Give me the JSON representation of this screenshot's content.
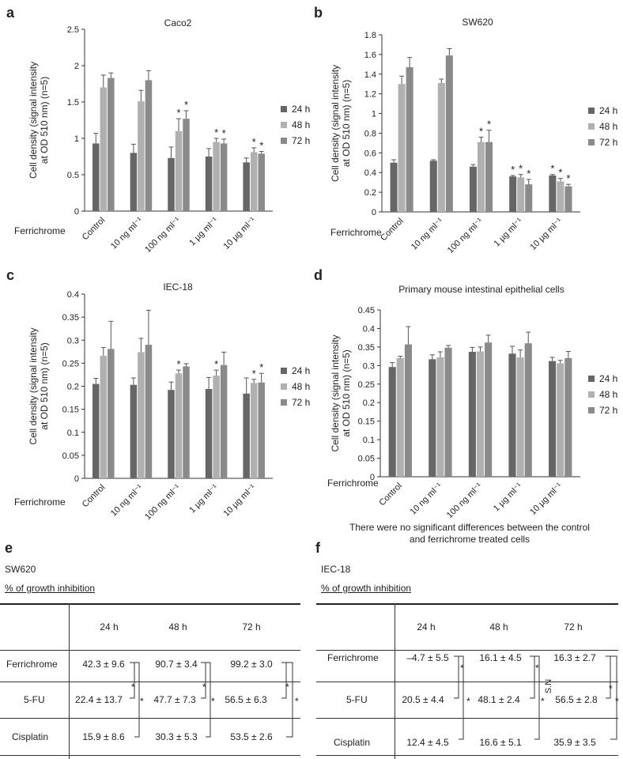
{
  "colors": {
    "h24": "#666666",
    "h48": "#b0b0b0",
    "h72": "#8a8a8a",
    "axis": "#333333",
    "error": "#555555"
  },
  "legend": [
    "24 h",
    "48 h",
    "72 h"
  ],
  "xaxis_title": "Ferrichrome",
  "ylabel_line1": "Cell density (signal intensity",
  "ylabel_line2": "at OD 510 nm) (n=5)",
  "chart_data": [
    {
      "panel": "a",
      "type": "bar",
      "title": "Caco2",
      "categories": [
        "Control",
        "10 ng ml⁻¹",
        "100 ng ml⁻¹",
        "1 µg ml⁻¹",
        "10 µg ml⁻¹"
      ],
      "ylim": [
        0,
        2.5
      ],
      "ystep": 0.5,
      "decimals": 1,
      "yticks": [
        "0",
        "0.5",
        "1",
        "1.5",
        "2",
        "2.5"
      ],
      "series": [
        {
          "name": "24 h",
          "values": [
            0.93,
            0.8,
            0.73,
            0.75,
            0.67
          ],
          "errors": [
            0.14,
            0.12,
            0.15,
            0.11,
            0.06
          ]
        },
        {
          "name": "48 h",
          "values": [
            1.7,
            1.51,
            1.1,
            0.95,
            0.81
          ],
          "errors": [
            0.17,
            0.15,
            0.17,
            0.05,
            0.06
          ]
        },
        {
          "name": "72 h",
          "values": [
            1.83,
            1.8,
            1.27,
            0.93,
            0.79
          ],
          "errors": [
            0.07,
            0.13,
            0.11,
            0.06,
            0.03
          ]
        }
      ],
      "significance": [
        [
          false,
          false,
          false
        ],
        [
          false,
          false,
          false
        ],
        [
          false,
          true,
          true
        ],
        [
          false,
          true,
          true
        ],
        [
          false,
          true,
          true
        ]
      ]
    },
    {
      "panel": "b",
      "type": "bar",
      "title": "SW620",
      "categories": [
        "Control",
        "10 ng ml⁻¹",
        "100 ng ml⁻¹",
        "1 µg ml⁻¹",
        "10 µg ml⁻¹"
      ],
      "ylim": [
        0,
        1.8
      ],
      "ystep": 0.2,
      "decimals": 1,
      "yticks": [
        "0",
        "0.2",
        "0.4",
        "0.6",
        "0.8",
        "1",
        "1.2",
        "1.4",
        "1.6",
        "1.8"
      ],
      "series": [
        {
          "name": "24 h",
          "values": [
            0.5,
            0.52,
            0.46,
            0.36,
            0.37
          ],
          "errors": [
            0.03,
            0.01,
            0.02,
            0.01,
            0.01
          ]
        },
        {
          "name": "48 h",
          "values": [
            1.3,
            1.31,
            0.71,
            0.35,
            0.31
          ],
          "errors": [
            0.08,
            0.04,
            0.05,
            0.03,
            0.03
          ]
        },
        {
          "name": "72 h",
          "values": [
            1.47,
            1.59,
            0.71,
            0.28,
            0.26
          ],
          "errors": [
            0.1,
            0.07,
            0.12,
            0.05,
            0.02
          ]
        }
      ],
      "significance": [
        [
          false,
          false,
          false
        ],
        [
          false,
          false,
          false
        ],
        [
          false,
          true,
          true
        ],
        [
          true,
          true,
          true
        ],
        [
          true,
          true,
          true
        ]
      ]
    },
    {
      "panel": "c",
      "type": "bar",
      "title": "IEC-18",
      "categories": [
        "Control",
        "10 ng ml⁻¹",
        "100 ng ml⁻¹",
        "1 µg ml⁻¹",
        "10 µg ml⁻¹"
      ],
      "ylim": [
        0,
        0.4
      ],
      "ystep": 0.05,
      "decimals": 2,
      "yticks": [
        "0",
        "0.05",
        "0.1",
        "0.15",
        "0.2",
        "0.25",
        "0.3",
        "0.35",
        "0.4"
      ],
      "series": [
        {
          "name": "24 h",
          "values": [
            0.205,
            0.203,
            0.192,
            0.194,
            0.184
          ],
          "errors": [
            0.012,
            0.015,
            0.017,
            0.025,
            0.034
          ]
        },
        {
          "name": "48 h",
          "values": [
            0.266,
            0.274,
            0.228,
            0.223,
            0.207
          ],
          "errors": [
            0.018,
            0.03,
            0.007,
            0.012,
            0.008
          ]
        },
        {
          "name": "72 h",
          "values": [
            0.281,
            0.29,
            0.243,
            0.246,
            0.208
          ],
          "errors": [
            0.06,
            0.075,
            0.006,
            0.028,
            0.02
          ]
        }
      ],
      "significance": [
        [
          false,
          false,
          false
        ],
        [
          false,
          false,
          false
        ],
        [
          false,
          true,
          false
        ],
        [
          false,
          true,
          false
        ],
        [
          false,
          true,
          true
        ]
      ]
    },
    {
      "panel": "d",
      "type": "bar",
      "title": "Primary mouse intestinal epithelial cells",
      "categories": [
        "Control",
        "10 ng ml⁻¹",
        "100 ng ml⁻¹",
        "1 µg ml⁻¹",
        "10 µg ml⁻¹"
      ],
      "ylim": [
        0,
        0.45
      ],
      "ystep": 0.05,
      "decimals": 2,
      "yticks": [
        "0",
        "0.05",
        "0.1",
        "0.15",
        "0.2",
        "0.25",
        "0.3",
        "0.35",
        "0.4",
        "0.45"
      ],
      "series": [
        {
          "name": "24 h",
          "values": [
            0.296,
            0.317,
            0.337,
            0.332,
            0.312
          ],
          "errors": [
            0.012,
            0.012,
            0.012,
            0.02,
            0.01
          ]
        },
        {
          "name": "48 h",
          "values": [
            0.32,
            0.322,
            0.338,
            0.322,
            0.306
          ],
          "errors": [
            0.005,
            0.015,
            0.012,
            0.02,
            0.008
          ]
        },
        {
          "name": "72 h",
          "values": [
            0.357,
            0.348,
            0.362,
            0.36,
            0.32
          ],
          "errors": [
            0.048,
            0.006,
            0.02,
            0.03,
            0.018
          ]
        }
      ],
      "significance": [
        [
          false,
          false,
          false
        ],
        [
          false,
          false,
          false
        ],
        [
          false,
          false,
          false
        ],
        [
          false,
          false,
          false
        ],
        [
          false,
          false,
          false
        ]
      ],
      "footnote_line1": "There were no significant differences between the control",
      "footnote_line2": "and ferrichrome treated cells"
    }
  ],
  "tables": [
    {
      "panel": "e",
      "cell_line": "SW620",
      "caption": "% of growth inhibition",
      "headers": [
        "24 h",
        "48 h",
        "72 h"
      ],
      "rows": [
        {
          "label": "Ferrichrome",
          "values": [
            "42.3 ± 9.6",
            "90.7 ± 3.4",
            "99.2 ± 3.0"
          ]
        },
        {
          "label": "5-FU",
          "values": [
            "22.4 ± 13.7",
            "47.7 ± 7.3",
            "56.5 ± 6.3"
          ]
        },
        {
          "label": "Cisplatin",
          "values": [
            "15.9 ± 8.6",
            "30.3 ± 5.3",
            "53.5 ± 2.6"
          ]
        }
      ],
      "mark_inner": "*",
      "mark_outer": "*"
    },
    {
      "panel": "f",
      "cell_line": "IEC-18",
      "caption": "% of growth inhibition",
      "headers": [
        "24 h",
        "48 h",
        "72 h"
      ],
      "rows": [
        {
          "label": "Ferrichrome",
          "values": [
            "–4.7 ± 5.5",
            "16.1 ± 4.5",
            "16.3 ± 2.7"
          ]
        },
        {
          "label": "5-FU",
          "values": [
            "20.5 ± 4.4",
            "48.1 ± 2.4",
            "56.5 ± 2.8"
          ]
        },
        {
          "label": "Cisplatin",
          "values": [
            "12.4 ± 4.5",
            "16.6 ± 5.1",
            "35.9 ± 3.5"
          ]
        }
      ],
      "mark_inner": "*",
      "mark_outer": "*",
      "ns_label": "S.N"
    }
  ]
}
